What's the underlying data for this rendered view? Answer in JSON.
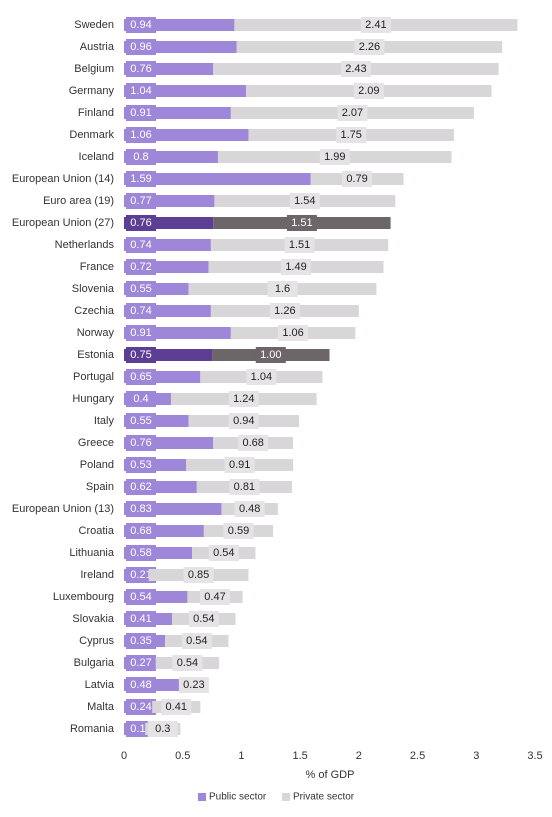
{
  "chart_data": {
    "type": "stacked-barh",
    "categories": [
      "Sweden",
      "Austria",
      "Belgium",
      "Germany",
      "Finland",
      "Denmark",
      "Iceland",
      "European Union (14)",
      "Euro area (19)",
      "European Union (27)",
      "Netherlands",
      "France",
      "Slovenia",
      "Czechia",
      "Norway",
      "Estonia",
      "Portugal",
      "Hungary",
      "Italy",
      "Greece",
      "Poland",
      "Spain",
      "European Union (13)",
      "Croatia",
      "Lithuania",
      "Ireland",
      "Luxembourg",
      "Slovakia",
      "Cyprus",
      "Bulgaria",
      "Latvia",
      "Malta",
      "Romania"
    ],
    "series": [
      {
        "name": "Public sector",
        "color": "#9e86d8",
        "highlight_color": "#5c3f94",
        "values": [
          0.94,
          0.96,
          0.76,
          1.04,
          0.91,
          1.06,
          0.8,
          1.59,
          0.77,
          0.76,
          0.74,
          0.72,
          0.55,
          0.74,
          0.91,
          0.75,
          0.65,
          0.4,
          0.55,
          0.76,
          0.53,
          0.62,
          0.83,
          0.68,
          0.58,
          0.21,
          0.54,
          0.41,
          0.35,
          0.27,
          0.48,
          0.24,
          0.18
        ]
      },
      {
        "name": "Private sector",
        "color": "#d9d6d9",
        "highlight_color": "#6c6569",
        "values": [
          2.41,
          2.26,
          2.43,
          2.09,
          2.07,
          1.75,
          1.99,
          0.79,
          1.54,
          1.51,
          1.51,
          1.49,
          1.6,
          1.26,
          1.06,
          1.0,
          1.04,
          1.24,
          0.94,
          0.68,
          0.91,
          0.81,
          0.48,
          0.59,
          0.54,
          0.85,
          0.47,
          0.54,
          0.54,
          0.54,
          0.23,
          0.41,
          0.3
        ],
        "value_labels": [
          "2.41",
          "2.26",
          "2.43",
          "2.09",
          "2.07",
          "1.75",
          "1.99",
          "0.79",
          "1.54",
          "1.51",
          "1.51",
          "1.49",
          "1.6",
          "1.26",
          "1.06",
          "1.00",
          "1.04",
          "1.24",
          "0.94",
          "0.68",
          "0.91",
          "0.81",
          "0.48",
          "0.59",
          "0.54",
          "0.85",
          "0.47",
          "0.54",
          "0.54",
          "0.54",
          "0.23",
          "0.41",
          "0.3"
        ]
      }
    ],
    "highlight": [
      "European Union (27)",
      "Estonia"
    ],
    "xlabel": "% of GDP",
    "xlim": [
      0,
      3.5
    ],
    "xticks": [
      0,
      0.5,
      1,
      1.5,
      2,
      2.5,
      3,
      3.5
    ],
    "legend": "bottom"
  }
}
